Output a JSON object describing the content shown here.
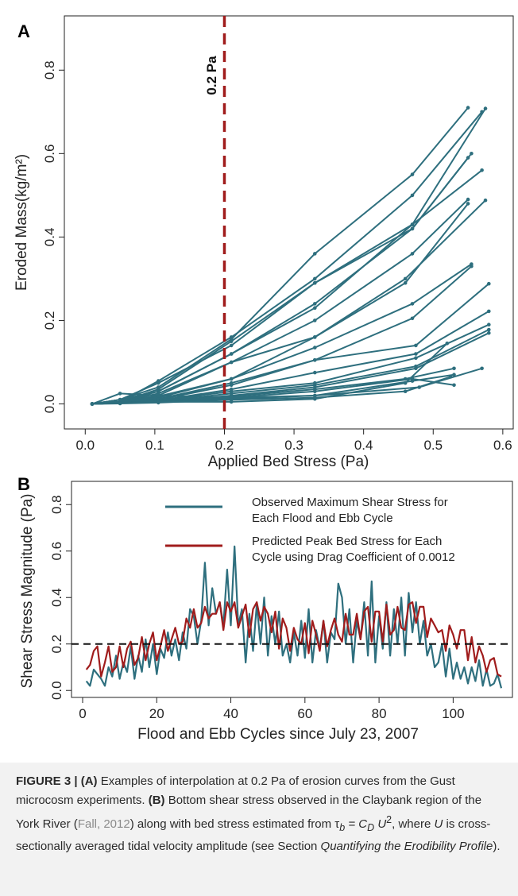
{
  "figure": {
    "panel_a_letter": "A",
    "panel_b_letter": "B",
    "threshold_label": "0.2 Pa"
  },
  "colors": {
    "curve": "#2e6f7e",
    "threshold": "#a01c1c",
    "predicted": "#a01c1c",
    "observed": "#2e6f7e",
    "dashed": "#111111"
  },
  "chart_data": [
    {
      "type": "line",
      "panel": "A",
      "xlabel": "Applied Bed Stress (Pa)",
      "ylabel": "Eroded Mass(kg/m²)",
      "xlim": [
        -0.03,
        0.615
      ],
      "ylim": [
        -0.06,
        0.93
      ],
      "xticks": [
        0.0,
        0.1,
        0.2,
        0.3,
        0.4,
        0.5,
        0.6
      ],
      "xtick_labels": [
        "0.0",
        "0.1",
        "0.2",
        "0.3",
        "0.4",
        "0.5",
        "0.6"
      ],
      "yticks": [
        0.0,
        0.2,
        0.4,
        0.6,
        0.8
      ],
      "ytick_labels": [
        "0.0",
        "0.2",
        "0.4",
        "0.6",
        "0.8"
      ],
      "threshold_x": 0.2,
      "grid": false,
      "series": [
        {
          "points": [
            [
              0.01,
              0
            ],
            [
              0.05,
              0.01
            ],
            [
              0.105,
              0.04
            ],
            [
              0.21,
              0.155
            ],
            [
              0.33,
              0.36
            ],
            [
              0.47,
              0.55
            ],
            [
              0.55,
              0.71
            ]
          ]
        },
        {
          "points": [
            [
              0.01,
              0
            ],
            [
              0.05,
              0.005
            ],
            [
              0.105,
              0.055
            ],
            [
              0.21,
              0.16
            ],
            [
              0.33,
              0.3
            ],
            [
              0.47,
              0.5
            ],
            [
              0.57,
              0.7
            ]
          ]
        },
        {
          "points": [
            [
              0.01,
              0
            ],
            [
              0.05,
              0.01
            ],
            [
              0.105,
              0.05
            ],
            [
              0.21,
              0.14
            ],
            [
              0.33,
              0.29
            ],
            [
              0.47,
              0.43
            ],
            [
              0.575,
              0.708
            ]
          ]
        },
        {
          "points": [
            [
              0.01,
              0
            ],
            [
              0.05,
              0.005
            ],
            [
              0.105,
              0.035
            ],
            [
              0.21,
              0.15
            ],
            [
              0.33,
              0.29
            ],
            [
              0.47,
              0.42
            ],
            [
              0.555,
              0.6
            ]
          ]
        },
        {
          "points": [
            [
              0.01,
              0
            ],
            [
              0.05,
              0.005
            ],
            [
              0.105,
              0.03
            ],
            [
              0.21,
              0.12
            ],
            [
              0.33,
              0.24
            ],
            [
              0.47,
              0.42
            ],
            [
              0.55,
              0.59
            ]
          ]
        },
        {
          "points": [
            [
              0.01,
              0
            ],
            [
              0.05,
              0.01
            ],
            [
              0.105,
              0.03
            ],
            [
              0.21,
              0.12
            ],
            [
              0.33,
              0.23
            ],
            [
              0.47,
              0.43
            ],
            [
              0.57,
              0.56
            ]
          ]
        },
        {
          "points": [
            [
              0.01,
              0
            ],
            [
              0.05,
              0.005
            ],
            [
              0.105,
              0.025
            ],
            [
              0.21,
              0.1
            ],
            [
              0.33,
              0.2
            ],
            [
              0.47,
              0.36
            ],
            [
              0.55,
              0.49
            ]
          ]
        },
        {
          "points": [
            [
              0.01,
              0
            ],
            [
              0.05,
              0.005
            ],
            [
              0.105,
              0.02
            ],
            [
              0.21,
              0.1
            ],
            [
              0.33,
              0.16
            ],
            [
              0.46,
              0.3
            ],
            [
              0.575,
              0.488
            ]
          ]
        },
        {
          "points": [
            [
              0.01,
              0
            ],
            [
              0.05,
              0.005
            ],
            [
              0.105,
              0.018
            ],
            [
              0.21,
              0.06
            ],
            [
              0.33,
              0.16
            ],
            [
              0.46,
              0.29
            ],
            [
              0.55,
              0.48
            ]
          ]
        },
        {
          "points": [
            [
              0.01,
              0
            ],
            [
              0.05,
              0.005
            ],
            [
              0.105,
              0.015
            ],
            [
              0.21,
              0.06
            ],
            [
              0.33,
              0.135
            ],
            [
              0.47,
              0.24
            ],
            [
              0.555,
              0.335
            ]
          ]
        },
        {
          "points": [
            [
              0.01,
              0
            ],
            [
              0.05,
              0.002
            ],
            [
              0.105,
              0.012
            ],
            [
              0.21,
              0.05
            ],
            [
              0.33,
              0.105
            ],
            [
              0.47,
              0.205
            ],
            [
              0.555,
              0.33
            ]
          ]
        },
        {
          "points": [
            [
              0.01,
              0
            ],
            [
              0.05,
              0.002
            ],
            [
              0.105,
              0.01
            ],
            [
              0.21,
              0.045
            ],
            [
              0.33,
              0.105
            ],
            [
              0.475,
              0.14
            ],
            [
              0.58,
              0.288
            ]
          ]
        },
        {
          "points": [
            [
              0.01,
              0
            ],
            [
              0.05,
              0.002
            ],
            [
              0.105,
              0.008
            ],
            [
              0.21,
              0.035
            ],
            [
              0.33,
              0.075
            ],
            [
              0.475,
              0.12
            ],
            [
              0.58,
              0.222
            ]
          ]
        },
        {
          "points": [
            [
              0.01,
              0
            ],
            [
              0.05,
              0.002
            ],
            [
              0.105,
              0.008
            ],
            [
              0.21,
              0.03
            ],
            [
              0.33,
              0.05
            ],
            [
              0.475,
              0.11
            ],
            [
              0.58,
              0.19
            ]
          ]
        },
        {
          "points": [
            [
              0.01,
              0
            ],
            [
              0.05,
              0.003
            ],
            [
              0.105,
              0.006
            ],
            [
              0.21,
              0.025
            ],
            [
              0.33,
              0.045
            ],
            [
              0.475,
              0.09
            ],
            [
              0.58,
              0.178
            ]
          ]
        },
        {
          "points": [
            [
              0.01,
              0
            ],
            [
              0.05,
              0.002
            ],
            [
              0.105,
              0.005
            ],
            [
              0.21,
              0.02
            ],
            [
              0.33,
              0.04
            ],
            [
              0.475,
              0.085
            ],
            [
              0.58,
              0.17
            ]
          ]
        },
        {
          "points": [
            [
              0.01,
              0
            ],
            [
              0.05,
              0.002
            ],
            [
              0.105,
              0.005
            ],
            [
              0.21,
              0.018
            ],
            [
              0.33,
              0.035
            ],
            [
              0.46,
              0.06
            ],
            [
              0.53,
              0.085
            ]
          ]
        },
        {
          "points": [
            [
              0.01,
              0
            ],
            [
              0.05,
              0.002
            ],
            [
              0.105,
              0.004
            ],
            [
              0.21,
              0.015
            ],
            [
              0.33,
              0.03
            ],
            [
              0.47,
              0.06
            ],
            [
              0.53,
              0.045
            ]
          ]
        },
        {
          "points": [
            [
              0.01,
              0
            ],
            [
              0.05,
              0.002
            ],
            [
              0.105,
              0.004
            ],
            [
              0.21,
              0.012
            ],
            [
              0.33,
              0.02
            ],
            [
              0.48,
              0.04
            ],
            [
              0.57,
              0.085
            ]
          ]
        },
        {
          "points": [
            [
              0.01,
              0
            ],
            [
              0.05,
              0.001
            ],
            [
              0.105,
              0.003
            ],
            [
              0.21,
              0.01
            ],
            [
              0.33,
              0.015
            ],
            [
              0.46,
              0.03
            ],
            [
              0.525,
              0.065
            ]
          ]
        },
        {
          "points": [
            [
              0.01,
              0
            ],
            [
              0.05,
              0.025
            ],
            [
              0.105,
              0.02
            ],
            [
              0.21,
              0.015
            ],
            [
              0.33,
              0.02
            ],
            [
              0.47,
              0.055
            ],
            [
              0.53,
              0.07
            ]
          ]
        },
        {
          "points": [
            [
              0.01,
              0
            ],
            [
              0.05,
              0.01
            ],
            [
              0.105,
              0.005
            ],
            [
              0.21,
              0.005
            ],
            [
              0.33,
              0.012
            ],
            [
              0.46,
              0.05
            ],
            [
              0.52,
              0.145
            ]
          ]
        }
      ]
    },
    {
      "type": "line",
      "panel": "B",
      "xlabel": "Flood and Ebb Cycles since July 23, 2007",
      "ylabel": "Shear Stress Magnitude (Pa)",
      "xlim": [
        -3,
        116
      ],
      "ylim": [
        -0.03,
        0.9
      ],
      "xticks": [
        0,
        20,
        40,
        60,
        80,
        100
      ],
      "xtick_labels": [
        "0",
        "20",
        "40",
        "60",
        "80",
        "100"
      ],
      "yticks": [
        0.0,
        0.2,
        0.4,
        0.6,
        0.8
      ],
      "ytick_labels": [
        "0.0",
        "0.2",
        "0.4",
        "0.6",
        "0.8"
      ],
      "hline_y": 0.2,
      "grid": false,
      "legend_position": "top",
      "series": [
        {
          "name": "Observed Maximum Shear Stress for Each Flood and Ebb Cycle",
          "x_start": 1,
          "values": [
            0.04,
            0.02,
            0.09,
            0.07,
            0.05,
            0.02,
            0.1,
            0.06,
            0.15,
            0.05,
            0.12,
            0.08,
            0.19,
            0.05,
            0.15,
            0.08,
            0.22,
            0.1,
            0.2,
            0.07,
            0.18,
            0.14,
            0.25,
            0.15,
            0.22,
            0.13,
            0.25,
            0.18,
            0.35,
            0.32,
            0.2,
            0.3,
            0.55,
            0.28,
            0.44,
            0.33,
            0.38,
            0.28,
            0.52,
            0.28,
            0.62,
            0.28,
            0.35,
            0.12,
            0.33,
            0.17,
            0.37,
            0.2,
            0.4,
            0.15,
            0.32,
            0.2,
            0.34,
            0.15,
            0.2,
            0.12,
            0.25,
            0.15,
            0.3,
            0.14,
            0.35,
            0.12,
            0.26,
            0.18,
            0.3,
            0.12,
            0.25,
            0.22,
            0.46,
            0.4,
            0.2,
            0.35,
            0.12,
            0.3,
            0.22,
            0.38,
            0.15,
            0.47,
            0.12,
            0.32,
            0.18,
            0.38,
            0.15,
            0.35,
            0.2,
            0.4,
            0.15,
            0.42,
            0.25,
            0.38,
            0.2,
            0.3,
            0.15,
            0.2,
            0.1,
            0.12,
            0.2,
            0.06,
            0.18,
            0.05,
            0.12,
            0.05,
            0.1,
            0.03,
            0.1,
            0.04,
            0.13,
            0.02,
            0.09,
            0.02,
            0.03,
            0.07,
            0.01
          ]
        },
        {
          "name": "Predicted Peak Bed Stress for Each Cycle using Drag Coefficient of 0.0012",
          "x_start": 1,
          "values": [
            0.09,
            0.11,
            0.17,
            0.19,
            0.06,
            0.12,
            0.19,
            0.08,
            0.1,
            0.19,
            0.1,
            0.18,
            0.21,
            0.11,
            0.14,
            0.23,
            0.13,
            0.2,
            0.25,
            0.13,
            0.19,
            0.26,
            0.17,
            0.22,
            0.27,
            0.2,
            0.21,
            0.31,
            0.27,
            0.35,
            0.27,
            0.29,
            0.36,
            0.31,
            0.33,
            0.33,
            0.38,
            0.26,
            0.38,
            0.34,
            0.38,
            0.27,
            0.32,
            0.37,
            0.23,
            0.35,
            0.38,
            0.3,
            0.36,
            0.33,
            0.25,
            0.34,
            0.18,
            0.31,
            0.27,
            0.17,
            0.27,
            0.22,
            0.2,
            0.29,
            0.16,
            0.3,
            0.24,
            0.17,
            0.3,
            0.19,
            0.26,
            0.31,
            0.24,
            0.21,
            0.33,
            0.24,
            0.24,
            0.33,
            0.22,
            0.34,
            0.36,
            0.21,
            0.34,
            0.34,
            0.21,
            0.37,
            0.24,
            0.26,
            0.36,
            0.27,
            0.26,
            0.37,
            0.38,
            0.29,
            0.36,
            0.36,
            0.23,
            0.31,
            0.28,
            0.25,
            0.26,
            0.17,
            0.28,
            0.24,
            0.18,
            0.26,
            0.26,
            0.13,
            0.23,
            0.12,
            0.19,
            0.15,
            0.08,
            0.13,
            0.14,
            0.07,
            0.06
          ]
        }
      ]
    }
  ],
  "caption": {
    "label": "FIGURE 3 | ",
    "a_tag": "(A)",
    "a_text": " Examples of interpolation at 0.2 Pa of erosion curves from the Gust microcosm experiments. ",
    "b_tag": "(B)",
    "b_text1": " Bottom shear stress observed in the Claybank region of the York River (",
    "ref": "Fall, 2012",
    "b_text2": ") along with bed stress estimated from τ",
    "sub_b": "b",
    "eq_mid": " = C",
    "sub_d": "D",
    "eq_u": " U",
    "sup_2": "2",
    "b_text3": ", where ",
    "u_var": "U",
    "b_text4": " is cross-sectionally averaged tidal velocity amplitude (see Section ",
    "section": "Quantifying the Erodibility Profile",
    "b_text5": ")."
  }
}
